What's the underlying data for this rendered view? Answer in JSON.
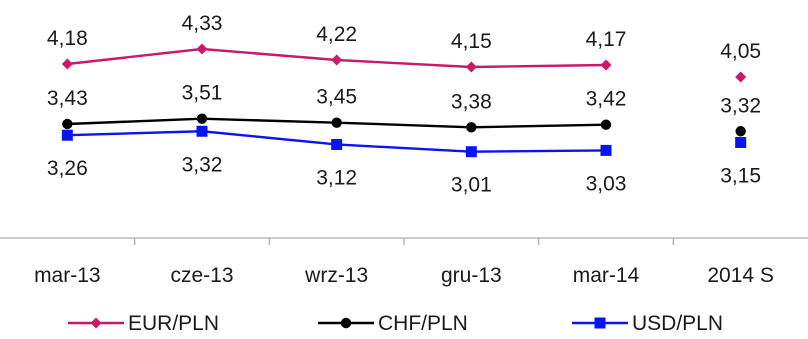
{
  "chart_data": {
    "type": "line",
    "categories": [
      "mar-13",
      "cze-13",
      "wrz-13",
      "gru-13",
      "mar-14",
      "2014 S"
    ],
    "series": [
      {
        "name": "EUR/PLN",
        "color": "#c8196b",
        "marker": "diamond",
        "values": [
          4.18,
          4.33,
          4.22,
          4.15,
          4.17,
          4.05
        ],
        "labels": [
          "4,18",
          "4,33",
          "4,22",
          "4,15",
          "4,17",
          "4,05"
        ]
      },
      {
        "name": "CHF/PLN",
        "color": "#000000",
        "marker": "circle",
        "values": [
          3.43,
          3.51,
          3.45,
          3.38,
          3.42,
          3.32
        ],
        "labels": [
          "3,43",
          "3,51",
          "3,45",
          "3,38",
          "3,42",
          "3,32"
        ]
      },
      {
        "name": "USD/PLN",
        "color": "#0a14f0",
        "marker": "square",
        "values": [
          3.26,
          3.32,
          3.12,
          3.01,
          3.03,
          3.15
        ],
        "labels": [
          "3,26",
          "3,32",
          "3,12",
          "3,01",
          "3,03",
          "3,15"
        ]
      }
    ],
    "connected_points": 5,
    "legend_position": "bottom",
    "grid": false
  }
}
